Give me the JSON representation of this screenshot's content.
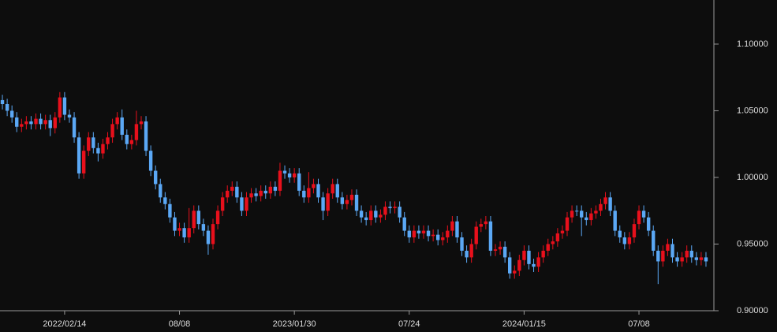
{
  "chart_data": {
    "type": "candlestick",
    "categories": [
      null,
      null,
      null,
      null,
      null,
      null,
      null,
      null,
      null,
      null,
      null,
      null,
      null,
      "2022/02/14",
      null,
      null,
      null,
      null,
      null,
      null,
      null,
      null,
      null,
      null,
      null,
      null,
      null,
      null,
      null,
      null,
      null,
      null,
      null,
      null,
      null,
      null,
      null,
      "08/08",
      null,
      null,
      null,
      null,
      null,
      null,
      null,
      null,
      null,
      null,
      null,
      null,
      null,
      null,
      null,
      null,
      null,
      null,
      null,
      null,
      null,
      null,
      null,
      "2023/01/30",
      null,
      null,
      null,
      null,
      null,
      null,
      null,
      null,
      null,
      null,
      null,
      null,
      null,
      null,
      null,
      null,
      null,
      null,
      null,
      null,
      null,
      null,
      null,
      "07/24",
      null,
      null,
      null,
      null,
      null,
      null,
      null,
      null,
      null,
      null,
      null,
      null,
      null,
      null,
      null,
      null,
      null,
      null,
      null,
      null,
      null,
      null,
      null,
      "2024/01/15",
      null,
      null,
      null,
      null,
      null,
      null,
      null,
      null,
      null,
      null,
      null,
      null,
      null,
      null,
      null,
      null,
      null,
      null,
      null,
      null,
      null,
      null,
      null,
      "07/08",
      null,
      null,
      null,
      null,
      null,
      null,
      null,
      null,
      null,
      null,
      null,
      null,
      null,
      null
    ],
    "open": [
      1.058,
      1.055,
      1.05,
      1.045,
      1.038,
      1.04,
      1.042,
      1.04,
      1.044,
      1.04,
      1.043,
      1.037,
      1.045,
      1.06,
      1.047,
      1.045,
      1.03,
      1.003,
      1.02,
      1.03,
      1.022,
      1.018,
      1.025,
      1.03,
      1.04,
      1.045,
      1.032,
      1.025,
      1.028,
      1.04,
      1.042,
      1.02,
      1.005,
      0.995,
      0.985,
      0.98,
      0.97,
      0.96,
      0.962,
      0.955,
      0.962,
      0.975,
      0.965,
      0.96,
      0.95,
      0.965,
      0.975,
      0.985,
      0.99,
      0.993,
      0.985,
      0.975,
      0.985,
      0.988,
      0.986,
      0.99,
      0.988,
      0.993,
      0.99,
      1.005,
      1.003,
      1.0,
      1.003,
      0.99,
      0.985,
      0.992,
      0.995,
      0.985,
      0.975,
      0.988,
      0.995,
      0.985,
      0.98,
      0.983,
      0.987,
      0.975,
      0.97,
      0.968,
      0.975,
      0.97,
      0.972,
      0.978,
      0.977,
      0.978,
      0.97,
      0.96,
      0.955,
      0.96,
      0.958,
      0.96,
      0.956,
      0.957,
      0.953,
      0.955,
      0.96,
      0.967,
      0.955,
      0.945,
      0.94,
      0.95,
      0.963,
      0.965,
      0.967,
      0.945,
      0.946,
      0.948,
      0.94,
      0.928,
      0.93,
      0.938,
      0.945,
      0.935,
      0.933,
      0.94,
      0.945,
      0.95,
      0.952,
      0.958,
      0.96,
      0.97,
      0.975,
      0.975,
      0.97,
      0.968,
      0.973,
      0.975,
      0.98,
      0.985,
      0.975,
      0.96,
      0.955,
      0.95,
      0.955,
      0.965,
      0.975,
      0.97,
      0.96,
      0.945,
      0.937,
      0.945,
      0.95,
      0.94,
      0.937,
      0.94,
      0.945,
      0.94,
      0.938,
      0.94
    ],
    "high": [
      1.062,
      1.059,
      1.054,
      1.049,
      1.044,
      1.046,
      1.046,
      1.048,
      1.048,
      1.047,
      1.047,
      1.049,
      1.064,
      1.064,
      1.051,
      1.049,
      1.034,
      1.024,
      1.034,
      1.034,
      1.026,
      1.029,
      1.034,
      1.044,
      1.049,
      1.051,
      1.036,
      1.032,
      1.05,
      1.046,
      1.046,
      1.024,
      1.009,
      0.999,
      0.989,
      0.984,
      0.974,
      0.966,
      0.966,
      0.977,
      0.979,
      0.979,
      0.969,
      0.964,
      0.969,
      0.979,
      0.989,
      0.994,
      0.997,
      0.997,
      0.989,
      0.989,
      0.992,
      0.992,
      0.994,
      0.994,
      0.997,
      0.997,
      1.011,
      1.009,
      1.007,
      1.007,
      1.007,
      0.994,
      1.004,
      0.999,
      0.999,
      0.989,
      0.992,
      0.999,
      0.999,
      0.989,
      0.987,
      0.991,
      0.991,
      0.979,
      0.974,
      0.979,
      0.979,
      0.976,
      0.982,
      0.982,
      0.982,
      0.982,
      0.974,
      0.964,
      0.964,
      0.964,
      0.964,
      0.964,
      0.961,
      0.961,
      0.959,
      0.964,
      0.971,
      0.971,
      0.959,
      0.949,
      0.954,
      0.967,
      0.969,
      0.971,
      0.971,
      0.95,
      0.952,
      0.952,
      0.944,
      0.934,
      0.942,
      0.949,
      0.949,
      0.939,
      0.944,
      0.949,
      0.954,
      0.956,
      0.962,
      0.964,
      0.974,
      0.979,
      0.979,
      0.979,
      0.974,
      0.977,
      0.979,
      0.984,
      0.989,
      0.989,
      0.979,
      0.964,
      0.959,
      0.959,
      0.969,
      0.979,
      0.979,
      0.974,
      0.964,
      0.949,
      0.949,
      0.954,
      0.954,
      0.944,
      0.944,
      0.949,
      0.949,
      0.944,
      0.944,
      0.944
    ],
    "low": [
      1.051,
      1.046,
      1.041,
      1.034,
      1.034,
      1.036,
      1.036,
      1.036,
      1.036,
      1.036,
      1.031,
      1.033,
      1.041,
      1.043,
      1.041,
      1.026,
      0.999,
      0.999,
      1.016,
      1.018,
      1.012,
      1.014,
      1.021,
      1.026,
      1.036,
      1.028,
      1.021,
      1.021,
      1.024,
      1.036,
      1.016,
      1.001,
      0.991,
      0.981,
      0.976,
      0.966,
      0.956,
      0.956,
      0.951,
      0.951,
      0.958,
      0.961,
      0.956,
      0.942,
      0.946,
      0.961,
      0.971,
      0.981,
      0.986,
      0.981,
      0.971,
      0.971,
      0.981,
      0.982,
      0.982,
      0.984,
      0.984,
      0.986,
      0.986,
      0.999,
      0.996,
      0.996,
      0.986,
      0.981,
      0.981,
      0.988,
      0.981,
      0.968,
      0.971,
      0.984,
      0.981,
      0.976,
      0.976,
      0.979,
      0.971,
      0.966,
      0.964,
      0.964,
      0.966,
      0.966,
      0.968,
      0.973,
      0.973,
      0.966,
      0.956,
      0.951,
      0.951,
      0.954,
      0.954,
      0.952,
      0.952,
      0.949,
      0.949,
      0.951,
      0.956,
      0.951,
      0.941,
      0.936,
      0.936,
      0.946,
      0.959,
      0.961,
      0.941,
      0.941,
      0.942,
      0.936,
      0.924,
      0.924,
      0.926,
      0.934,
      0.931,
      0.929,
      0.929,
      0.936,
      0.941,
      0.946,
      0.948,
      0.954,
      0.956,
      0.966,
      0.971,
      0.956,
      0.964,
      0.964,
      0.969,
      0.971,
      0.976,
      0.971,
      0.956,
      0.951,
      0.946,
      0.946,
      0.951,
      0.961,
      0.966,
      0.956,
      0.941,
      0.92,
      0.933,
      0.941,
      0.936,
      0.933,
      0.933,
      0.936,
      0.936,
      0.934,
      0.934,
      0.933
    ],
    "close": [
      1.055,
      1.05,
      1.045,
      1.038,
      1.04,
      1.042,
      1.04,
      1.044,
      1.04,
      1.043,
      1.037,
      1.045,
      1.06,
      1.047,
      1.045,
      1.03,
      1.003,
      1.02,
      1.03,
      1.022,
      1.018,
      1.025,
      1.03,
      1.04,
      1.045,
      1.032,
      1.025,
      1.028,
      1.04,
      1.042,
      1.02,
      1.005,
      0.995,
      0.985,
      0.98,
      0.97,
      0.96,
      0.962,
      0.955,
      0.962,
      0.975,
      0.965,
      0.96,
      0.95,
      0.965,
      0.975,
      0.985,
      0.99,
      0.993,
      0.985,
      0.975,
      0.985,
      0.988,
      0.986,
      0.99,
      0.988,
      0.993,
      0.99,
      1.005,
      1.003,
      1.0,
      1.003,
      0.99,
      0.985,
      0.992,
      0.995,
      0.985,
      0.975,
      0.988,
      0.995,
      0.985,
      0.98,
      0.983,
      0.987,
      0.975,
      0.97,
      0.968,
      0.975,
      0.97,
      0.972,
      0.978,
      0.977,
      0.978,
      0.97,
      0.96,
      0.955,
      0.96,
      0.958,
      0.96,
      0.956,
      0.957,
      0.953,
      0.955,
      0.96,
      0.967,
      0.955,
      0.945,
      0.94,
      0.95,
      0.963,
      0.965,
      0.967,
      0.945,
      0.946,
      0.948,
      0.94,
      0.928,
      0.93,
      0.938,
      0.945,
      0.935,
      0.933,
      0.94,
      0.945,
      0.95,
      0.952,
      0.958,
      0.96,
      0.97,
      0.975,
      0.975,
      0.97,
      0.968,
      0.973,
      0.975,
      0.98,
      0.985,
      0.975,
      0.96,
      0.955,
      0.95,
      0.955,
      0.965,
      0.975,
      0.97,
      0.96,
      0.945,
      0.937,
      0.945,
      0.95,
      0.94,
      0.937,
      0.94,
      0.945,
      0.94,
      0.938,
      0.94,
      0.937
    ],
    "up_color": "#e8101c",
    "down_color": "#5ba8f5",
    "ylim": [
      0.9,
      1.1331
    ],
    "yticks": [
      {
        "value": 0.9,
        "label": "0.90000"
      },
      {
        "value": 0.95,
        "label": "0.95000"
      },
      {
        "value": 1.0,
        "label": "1.00000"
      },
      {
        "value": 1.05,
        "label": "1.05000"
      },
      {
        "value": 1.1,
        "label": "1.10000"
      }
    ]
  }
}
